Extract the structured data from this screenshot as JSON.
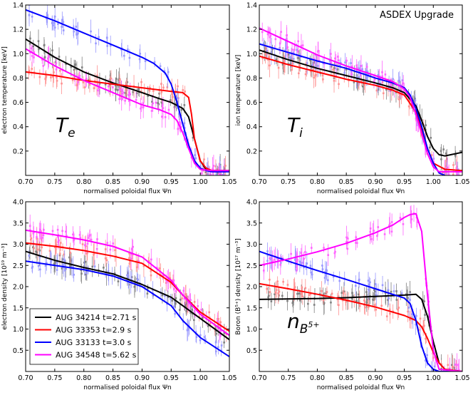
{
  "figure": {
    "watermark": "ASDEX Upgrade"
  },
  "colors": {
    "AUG 34214": "#000000",
    "AUG 33353": "#ff0000",
    "AUG 33133": "#0000ff",
    "AUG 34548": "#ff00ff"
  },
  "legend": {
    "entries": [
      {
        "label": "AUG 34214 t=2.71 s",
        "color": "#000000"
      },
      {
        "label": "AUG 33353 t=2.9 s",
        "color": "#ff0000"
      },
      {
        "label": "AUG 33133 t=3.0 s",
        "color": "#0000ff"
      },
      {
        "label": "AUG 34548 t=5.62 s",
        "color": "#ff00ff"
      }
    ]
  },
  "chart_data": [
    {
      "type": "line",
      "title": "",
      "annotation": "T_e",
      "xlabel": "normalised poloidal flux Ψn",
      "ylabel": "electron temperature [keV]",
      "xlim": [
        0.7,
        1.05
      ],
      "ylim": [
        0.0,
        1.4
      ],
      "xticks": [
        "0.70",
        "0.75",
        "0.80",
        "0.85",
        "0.90",
        "0.95",
        "1.00",
        "1.05"
      ],
      "yticks": [
        "0.2",
        "0.4",
        "0.6",
        "0.8",
        "1.0",
        "1.2",
        "1.4"
      ],
      "series": [
        {
          "name": "AUG 34214",
          "x": [
            0.7,
            0.75,
            0.8,
            0.85,
            0.9,
            0.93,
            0.95,
            0.97,
            0.98,
            0.99,
            1.0,
            1.01,
            1.02,
            1.05
          ],
          "values": [
            1.12,
            0.97,
            0.85,
            0.76,
            0.68,
            0.63,
            0.6,
            0.55,
            0.48,
            0.3,
            0.12,
            0.05,
            0.04,
            0.04
          ]
        },
        {
          "name": "AUG 33353",
          "x": [
            0.7,
            0.75,
            0.8,
            0.85,
            0.9,
            0.95,
            0.97,
            0.98,
            0.985,
            0.99,
            1.0,
            1.01,
            1.02,
            1.05
          ],
          "values": [
            0.85,
            0.82,
            0.78,
            0.75,
            0.72,
            0.69,
            0.68,
            0.64,
            0.5,
            0.3,
            0.12,
            0.06,
            0.04,
            0.04
          ]
        },
        {
          "name": "AUG 33133",
          "x": [
            0.7,
            0.75,
            0.8,
            0.85,
            0.9,
            0.92,
            0.94,
            0.95,
            0.96,
            0.97,
            0.98,
            0.99,
            1.0,
            1.01,
            1.02,
            1.05
          ],
          "values": [
            1.36,
            1.27,
            1.17,
            1.07,
            0.97,
            0.92,
            0.84,
            0.75,
            0.6,
            0.42,
            0.25,
            0.12,
            0.06,
            0.04,
            0.03,
            0.03
          ]
        },
        {
          "name": "AUG 34548",
          "x": [
            0.7,
            0.75,
            0.8,
            0.85,
            0.9,
            0.93,
            0.95,
            0.96,
            0.97,
            0.98,
            0.99,
            1.0,
            1.02,
            1.05
          ],
          "values": [
            1.04,
            0.9,
            0.78,
            0.68,
            0.58,
            0.54,
            0.5,
            0.45,
            0.35,
            0.22,
            0.1,
            0.05,
            0.04,
            0.04
          ]
        }
      ]
    },
    {
      "type": "line",
      "title": "",
      "annotation": "T_i",
      "xlabel": "normalised poloidal flux Ψn",
      "ylabel": "ion temperature [keV]",
      "xlim": [
        0.7,
        1.05
      ],
      "ylim": [
        0.0,
        1.4
      ],
      "xticks": [
        "0.70",
        "0.75",
        "0.80",
        "0.85",
        "0.90",
        "0.95",
        "1.00",
        "1.05"
      ],
      "yticks": [
        "0.2",
        "0.4",
        "0.6",
        "0.8",
        "1.0",
        "1.2",
        "1.4"
      ],
      "series": [
        {
          "name": "AUG 34214",
          "x": [
            0.7,
            0.75,
            0.8,
            0.85,
            0.9,
            0.93,
            0.95,
            0.97,
            0.98,
            0.99,
            1.0,
            1.01,
            1.02,
            1.03,
            1.05
          ],
          "values": [
            1.03,
            0.95,
            0.88,
            0.82,
            0.76,
            0.72,
            0.68,
            0.57,
            0.45,
            0.32,
            0.22,
            0.17,
            0.16,
            0.17,
            0.19
          ]
        },
        {
          "name": "AUG 33353",
          "x": [
            0.7,
            0.75,
            0.8,
            0.85,
            0.9,
            0.93,
            0.95,
            0.97,
            0.98,
            0.99,
            1.0,
            1.02,
            1.05
          ],
          "values": [
            0.98,
            0.91,
            0.85,
            0.79,
            0.74,
            0.7,
            0.66,
            0.52,
            0.38,
            0.22,
            0.1,
            0.05,
            0.04
          ]
        },
        {
          "name": "AUG 33133",
          "x": [
            0.7,
            0.75,
            0.8,
            0.85,
            0.9,
            0.93,
            0.95,
            0.96,
            0.97,
            0.98,
            0.99,
            1.0,
            1.01,
            1.02
          ],
          "values": [
            1.08,
            1.01,
            0.94,
            0.88,
            0.8,
            0.76,
            0.72,
            0.66,
            0.55,
            0.4,
            0.22,
            0.1,
            0.02,
            0.0
          ]
        },
        {
          "name": "AUG 34548",
          "x": [
            0.7,
            0.75,
            0.8,
            0.85,
            0.9,
            0.93,
            0.95,
            0.96,
            0.97,
            0.98,
            0.99,
            1.0,
            1.01,
            1.05
          ],
          "values": [
            1.21,
            1.1,
            0.99,
            0.9,
            0.82,
            0.77,
            0.71,
            0.64,
            0.5,
            0.34,
            0.18,
            0.07,
            0.03,
            0.03
          ]
        }
      ]
    },
    {
      "type": "line",
      "title": "",
      "annotation": "n_e",
      "xlabel": "normalised poloidal flux Ψn",
      "ylabel": "electron density [10¹⁹ m⁻³]",
      "xlim": [
        0.7,
        1.05
      ],
      "ylim": [
        0.0,
        4.0
      ],
      "xticks": [
        "0.70",
        "0.75",
        "0.80",
        "0.85",
        "0.90",
        "0.95",
        "1.00",
        "1.05"
      ],
      "yticks": [
        "0.5",
        "1.0",
        "1.5",
        "2.0",
        "2.5",
        "3.0",
        "3.5",
        "4.0"
      ],
      "series": [
        {
          "name": "AUG 34214",
          "x": [
            0.7,
            0.75,
            0.8,
            0.85,
            0.9,
            0.95,
            1.0,
            1.05
          ],
          "values": [
            2.83,
            2.62,
            2.45,
            2.3,
            2.05,
            1.75,
            1.25,
            0.75
          ]
        },
        {
          "name": "AUG 33353",
          "x": [
            0.7,
            0.75,
            0.8,
            0.85,
            0.9,
            0.95,
            0.97,
            1.0,
            1.05
          ],
          "values": [
            3.03,
            2.95,
            2.85,
            2.72,
            2.55,
            2.1,
            1.8,
            1.4,
            0.95
          ]
        },
        {
          "name": "AUG 33133",
          "x": [
            0.7,
            0.75,
            0.8,
            0.85,
            0.9,
            0.95,
            0.97,
            1.0,
            1.05
          ],
          "values": [
            2.6,
            2.5,
            2.4,
            2.25,
            2.0,
            1.55,
            1.2,
            0.8,
            0.35
          ]
        },
        {
          "name": "AUG 34548",
          "x": [
            0.7,
            0.75,
            0.8,
            0.85,
            0.9,
            0.95,
            0.97,
            1.0,
            1.05
          ],
          "values": [
            3.33,
            3.22,
            3.1,
            2.95,
            2.7,
            2.15,
            1.8,
            1.35,
            0.85
          ]
        }
      ]
    },
    {
      "type": "line",
      "title": "",
      "annotation": "n_B5+",
      "xlabel": "normalised poloidal flux Ψn",
      "ylabel": "Boron (B⁵⁺) density [10¹⁷ m⁻³]",
      "xlim": [
        0.7,
        1.05
      ],
      "ylim": [
        0.0,
        4.0
      ],
      "xticks": [
        "0.70",
        "0.75",
        "0.80",
        "0.85",
        "0.90",
        "0.95",
        "1.00",
        "1.05"
      ],
      "yticks": [
        "0.5",
        "1.0",
        "1.5",
        "2.0",
        "2.5",
        "3.0",
        "3.5",
        "4.0"
      ],
      "series": [
        {
          "name": "AUG 34214",
          "x": [
            0.7,
            0.75,
            0.8,
            0.85,
            0.9,
            0.95,
            0.97,
            0.98,
            0.99,
            1.0,
            1.01,
            1.02,
            1.05
          ],
          "values": [
            1.7,
            1.71,
            1.72,
            1.74,
            1.77,
            1.8,
            1.82,
            1.7,
            1.3,
            0.7,
            0.2,
            0.05,
            0.0
          ]
        },
        {
          "name": "AUG 33353",
          "x": [
            0.7,
            0.75,
            0.8,
            0.85,
            0.9,
            0.95,
            0.97,
            0.98,
            0.99,
            1.0,
            1.01,
            1.02,
            1.05
          ],
          "values": [
            2.07,
            1.95,
            1.82,
            1.68,
            1.52,
            1.32,
            1.2,
            1.05,
            0.78,
            0.45,
            0.2,
            0.05,
            0.0
          ]
        },
        {
          "name": "AUG 33133",
          "x": [
            0.7,
            0.75,
            0.8,
            0.85,
            0.9,
            0.95,
            0.96,
            0.97,
            0.98,
            0.99,
            1.0,
            1.01,
            1.05
          ],
          "values": [
            2.83,
            2.6,
            2.38,
            2.17,
            1.95,
            1.73,
            1.6,
            1.2,
            0.6,
            0.2,
            0.05,
            0.0,
            0.0
          ]
        },
        {
          "name": "AUG 34548",
          "x": [
            0.7,
            0.75,
            0.8,
            0.85,
            0.9,
            0.93,
            0.95,
            0.96,
            0.97,
            0.98,
            0.99,
            1.0,
            1.01,
            1.05
          ],
          "values": [
            2.5,
            2.65,
            2.82,
            3.02,
            3.27,
            3.45,
            3.63,
            3.7,
            3.72,
            3.3,
            1.8,
            0.5,
            0.05,
            0.0
          ]
        }
      ]
    }
  ]
}
